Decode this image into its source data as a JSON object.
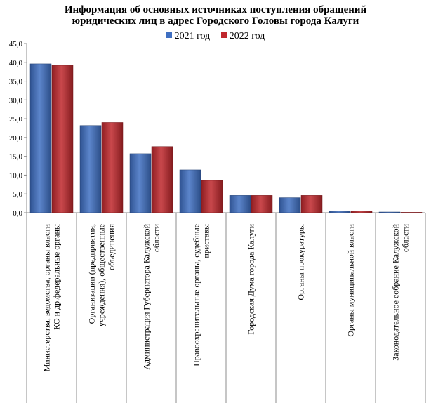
{
  "chart_data": {
    "type": "bar",
    "title_line1": "Информация об основных источниках поступления обращений",
    "title_line2": "юридических  лиц в адрес Городского Головы города Калуги",
    "categories": [
      [
        "Министерства, ведомства, органы власти",
        "КО и др.федеральные органы"
      ],
      [
        "Организации  (предприятия,",
        "учреждения), общественные",
        "объединения"
      ],
      [
        "Администрация  Губернатора Калужской",
        "области"
      ],
      [
        "Правоохранительные  органы, судебные",
        "приставы"
      ],
      [
        "Городская Дума города Калуги"
      ],
      [
        "Органы прокуратуры"
      ],
      [
        "Органы муниципальной  власти"
      ],
      [
        "Законодательное собрание  Калужской",
        "области"
      ]
    ],
    "series": [
      {
        "name": "2021 год",
        "color": "#3f6fc2",
        "values": [
          39.6,
          23.2,
          15.7,
          11.4,
          4.6,
          4.0,
          0.4,
          0.1
        ]
      },
      {
        "name": "2022 год",
        "color": "#c0282d",
        "values": [
          39.2,
          24.0,
          17.6,
          8.6,
          4.6,
          4.6,
          0.4,
          0.0
        ]
      }
    ],
    "yticks": [
      "0,0",
      "5,0",
      "10,0",
      "15,0",
      "20,0",
      "25,0",
      "30,0",
      "35,0",
      "40,0",
      "45,0"
    ],
    "ylim": [
      0,
      45
    ],
    "legend_position": "top",
    "grid": false
  }
}
